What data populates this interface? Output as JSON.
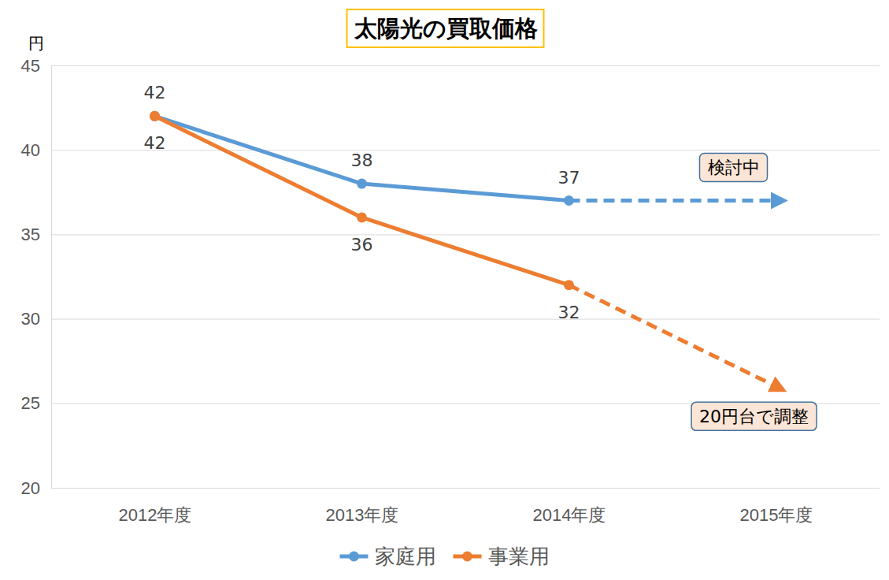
{
  "chart_data": {
    "type": "line",
    "title": "太陽光の買取価格",
    "y_label": "円",
    "categories": [
      "2012年度",
      "2013年度",
      "2014年度",
      "2015年度"
    ],
    "series": [
      {
        "name": "家庭用",
        "color": "#5b9bd5",
        "marker": "circle",
        "values": [
          42,
          38,
          37,
          null
        ],
        "forecast": [
          null,
          null,
          37,
          37
        ],
        "annotation": "検討中"
      },
      {
        "name": "事業用",
        "color": "#ed7d31",
        "marker": "circle",
        "values": [
          42,
          36,
          32,
          null
        ],
        "forecast": [
          null,
          null,
          32,
          26
        ],
        "annotation": "20円台で調整"
      }
    ],
    "ylim": [
      20,
      45
    ],
    "yticks": [
      20,
      25,
      30,
      35,
      40,
      45
    ],
    "grid": true,
    "legend": "bottom",
    "data_labels": true
  }
}
